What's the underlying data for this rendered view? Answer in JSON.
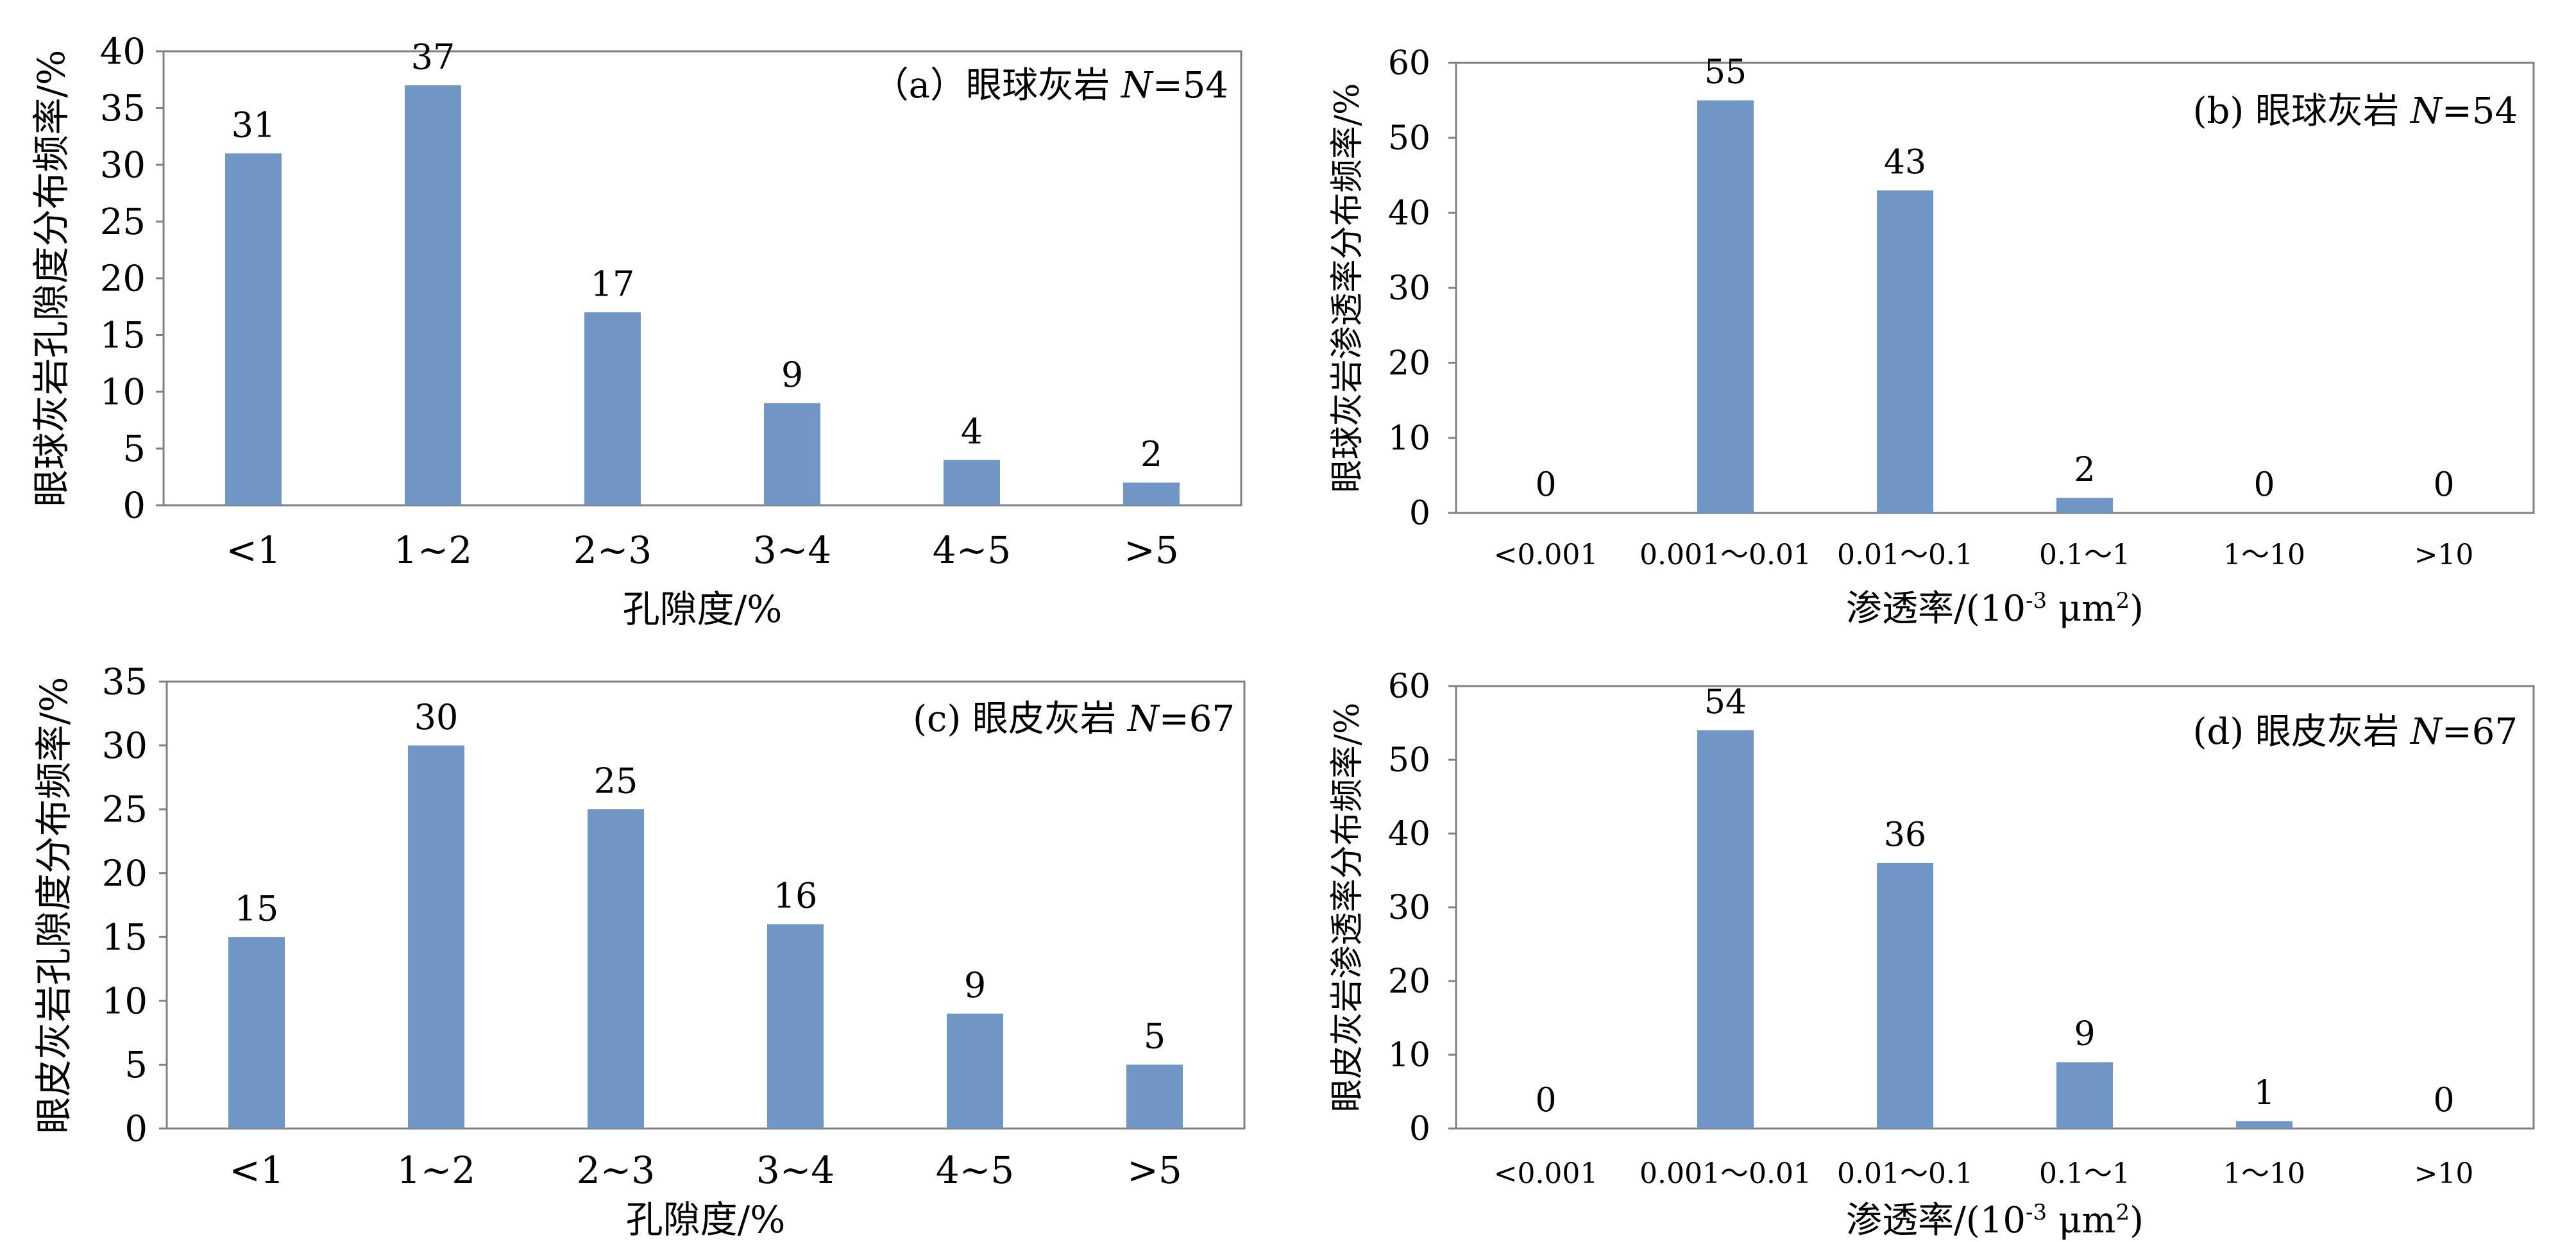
{
  "colors": {
    "bar": "#7096c6",
    "axis": "#808080"
  },
  "chart_data": [
    {
      "id": "a",
      "type": "bar",
      "categories": [
        "<1",
        "1~2",
        "2~3",
        "3~4",
        "4~5",
        ">5"
      ],
      "values": [
        31,
        37,
        17,
        9,
        4,
        2
      ],
      "data_labels": [
        "31",
        "37",
        "17",
        "9",
        "4",
        "2"
      ],
      "ylim": [
        0,
        40
      ],
      "yticks": [
        "0",
        "5",
        "10",
        "15",
        "20",
        "25",
        "30",
        "35",
        "40"
      ],
      "ytick_values": [
        0,
        5,
        10,
        15,
        20,
        25,
        30,
        35,
        40
      ],
      "xlabel": "孔隙度/%",
      "ylabel": "眼球灰岩孔隙度分布频率/%",
      "annotation": {
        "prefix": "（a）眼球灰岩 ",
        "n_symbol": "N",
        "n_value": "=54"
      },
      "grid": false
    },
    {
      "id": "b",
      "type": "bar",
      "categories": [
        "<0.001",
        "0.001～0.01",
        "0.01～0.1",
        "0.1～1",
        "1～10",
        ">10"
      ],
      "values": [
        0,
        55,
        43,
        2,
        0,
        0
      ],
      "data_labels": [
        "0",
        "55",
        "43",
        "2",
        "0",
        "0"
      ],
      "ylim": [
        0,
        60
      ],
      "yticks": [
        "0",
        "10",
        "20",
        "30",
        "40",
        "50",
        "60"
      ],
      "ytick_values": [
        0,
        10,
        20,
        30,
        40,
        50,
        60
      ],
      "xlabel": {
        "main": "渗透率/(10",
        "sup": "-3",
        "mid": " μm",
        "sup2": "2",
        "end": ")"
      },
      "ylabel": "眼球灰岩渗透率分布频率/%",
      "annotation": {
        "prefix": "(b) 眼球灰岩 ",
        "n_symbol": "N",
        "n_value": "=54"
      },
      "grid": false
    },
    {
      "id": "c",
      "type": "bar",
      "categories": [
        "<1",
        "1~2",
        "2~3",
        "3~4",
        "4~5",
        ">5"
      ],
      "values": [
        15,
        30,
        25,
        16,
        9,
        5
      ],
      "data_labels": [
        "15",
        "30",
        "25",
        "16",
        "9",
        "5"
      ],
      "ylim": [
        0,
        35
      ],
      "yticks": [
        "0",
        "5",
        "10",
        "15",
        "20",
        "25",
        "30",
        "35"
      ],
      "ytick_values": [
        0,
        5,
        10,
        15,
        20,
        25,
        30,
        35
      ],
      "xlabel": "孔隙度/%",
      "ylabel": "眼皮灰岩孔隙度分布频率/%",
      "annotation": {
        "prefix": "(c) 眼皮灰岩 ",
        "n_symbol": "N",
        "n_value": "=67"
      },
      "grid": false
    },
    {
      "id": "d",
      "type": "bar",
      "categories": [
        "<0.001",
        "0.001～0.01",
        "0.01～0.1",
        "0.1～1",
        "1～10",
        ">10"
      ],
      "values": [
        0,
        54,
        36,
        9,
        1,
        0
      ],
      "data_labels": [
        "0",
        "54",
        "36",
        "9",
        "1",
        "0"
      ],
      "ylim": [
        0,
        60
      ],
      "yticks": [
        "0",
        "10",
        "20",
        "30",
        "40",
        "50",
        "60"
      ],
      "ytick_values": [
        0,
        10,
        20,
        30,
        40,
        50,
        60
      ],
      "xlabel": {
        "main": "渗透率/(10",
        "sup": "-3",
        "mid": " μm",
        "sup2": "2",
        "end": ")"
      },
      "ylabel": "眼皮灰岩渗透率分布频率/%",
      "annotation": {
        "prefix": "(d) 眼皮灰岩 ",
        "n_symbol": "N",
        "n_value": "=67"
      },
      "grid": false
    }
  ]
}
